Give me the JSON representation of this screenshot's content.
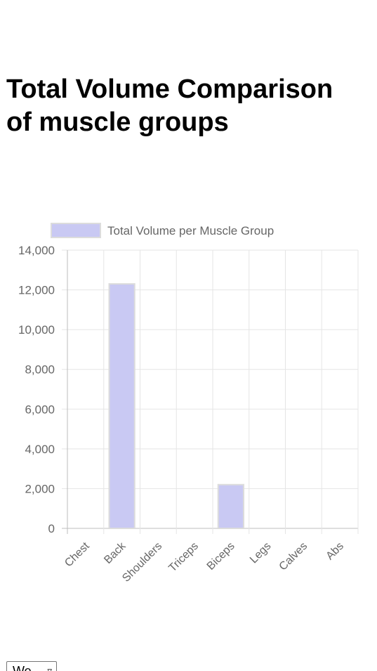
{
  "page": {
    "title": "Total Volume Comparison of muscle groups"
  },
  "week_select": {
    "value": "We",
    "icon": "chevron-down-icon"
  },
  "chart_data": {
    "type": "bar",
    "title": "",
    "xlabel": "",
    "ylabel": "",
    "categories": [
      "Chest",
      "Back",
      "Shoulders",
      "Triceps",
      "Biceps",
      "Legs",
      "Calves",
      "Abs"
    ],
    "series": [
      {
        "name": "Total Volume per Muscle Group",
        "values": [
          0,
          12300,
          0,
          0,
          2200,
          0,
          0,
          0
        ],
        "color": "#c9c9f3",
        "border_color": "#dcdcdc"
      }
    ],
    "ylim": [
      0,
      14000
    ],
    "yticks": [
      0,
      2000,
      4000,
      6000,
      8000,
      10000,
      12000,
      14000
    ],
    "grid": true,
    "legend": "top",
    "tick_label_rotation": -45
  }
}
